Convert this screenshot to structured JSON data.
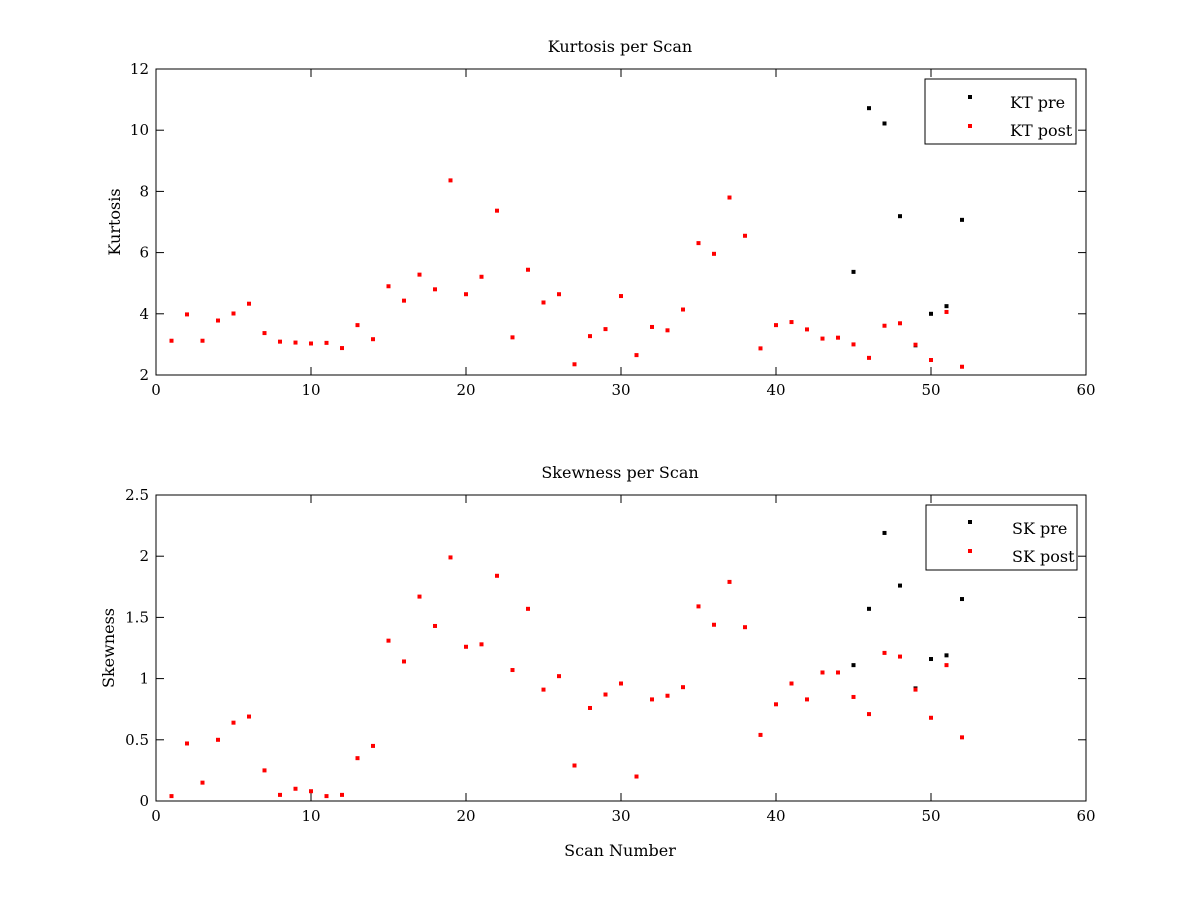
{
  "colors": {
    "pre": "#000000",
    "post": "#ff0000",
    "axes": "#000000",
    "background": "#ffffff"
  },
  "chart_data": [
    {
      "type": "scatter",
      "title": "Kurtosis per Scan",
      "xlabel": "",
      "ylabel": "Kurtosis",
      "xlim": [
        0,
        60
      ],
      "ylim": [
        2,
        12
      ],
      "xticks": [
        0,
        10,
        20,
        30,
        40,
        50,
        60
      ],
      "yticks": [
        2,
        4,
        6,
        8,
        10,
        12
      ],
      "grid": false,
      "legend_position": "top-right",
      "series": [
        {
          "name": "KT pre",
          "color": "#000000",
          "points": [
            [
              45,
              5.37
            ],
            [
              46,
              10.72
            ],
            [
              47,
              10.22
            ],
            [
              48,
              7.19
            ],
            [
              49,
              2.97
            ],
            [
              50,
              4.0
            ],
            [
              51,
              4.25
            ],
            [
              52,
              7.07
            ]
          ]
        },
        {
          "name": "KT post",
          "color": "#ff0000",
          "points": [
            [
              1,
              3.12
            ],
            [
              2,
              3.98
            ],
            [
              3,
              3.12
            ],
            [
              4,
              3.78
            ],
            [
              5,
              4.01
            ],
            [
              6,
              4.33
            ],
            [
              7,
              3.37
            ],
            [
              8,
              3.09
            ],
            [
              9,
              3.06
            ],
            [
              10,
              3.03
            ],
            [
              11,
              3.05
            ],
            [
              12,
              2.88
            ],
            [
              13,
              3.63
            ],
            [
              14,
              3.17
            ],
            [
              15,
              4.9
            ],
            [
              16,
              4.43
            ],
            [
              17,
              5.28
            ],
            [
              18,
              4.8
            ],
            [
              19,
              8.36
            ],
            [
              20,
              4.64
            ],
            [
              21,
              5.21
            ],
            [
              22,
              7.37
            ],
            [
              23,
              3.23
            ],
            [
              24,
              5.44
            ],
            [
              25,
              4.37
            ],
            [
              26,
              4.64
            ],
            [
              27,
              2.35
            ],
            [
              28,
              3.27
            ],
            [
              29,
              3.5
            ],
            [
              30,
              4.58
            ],
            [
              31,
              2.65
            ],
            [
              32,
              3.57
            ],
            [
              33,
              3.46
            ],
            [
              34,
              4.14
            ],
            [
              35,
              6.31
            ],
            [
              36,
              5.96
            ],
            [
              37,
              7.8
            ],
            [
              38,
              6.55
            ],
            [
              39,
              2.87
            ],
            [
              40,
              3.63
            ],
            [
              41,
              3.73
            ],
            [
              42,
              3.49
            ],
            [
              43,
              3.19
            ],
            [
              44,
              3.22
            ],
            [
              45,
              3.0
            ],
            [
              46,
              2.56
            ],
            [
              47,
              3.61
            ],
            [
              48,
              3.69
            ],
            [
              49,
              2.99
            ],
            [
              50,
              2.49
            ],
            [
              51,
              4.06
            ],
            [
              52,
              2.27
            ]
          ]
        }
      ]
    },
    {
      "type": "scatter",
      "title": "Skewness per Scan",
      "xlabel": "Scan Number",
      "ylabel": "Skewness",
      "xlim": [
        0,
        60
      ],
      "ylim": [
        0,
        2.5
      ],
      "xticks": [
        0,
        10,
        20,
        30,
        40,
        50,
        60
      ],
      "yticks": [
        0,
        0.5,
        1,
        1.5,
        2,
        2.5
      ],
      "grid": false,
      "legend_position": "top-right",
      "series": [
        {
          "name": "SK pre",
          "color": "#000000",
          "points": [
            [
              45,
              1.11
            ],
            [
              46,
              1.57
            ],
            [
              47,
              2.19
            ],
            [
              48,
              1.76
            ],
            [
              49,
              0.92
            ],
            [
              50,
              1.16
            ],
            [
              51,
              1.19
            ],
            [
              52,
              1.65
            ]
          ]
        },
        {
          "name": "SK post",
          "color": "#ff0000",
          "points": [
            [
              1,
              0.04
            ],
            [
              2,
              0.47
            ],
            [
              3,
              0.15
            ],
            [
              4,
              0.5
            ],
            [
              5,
              0.64
            ],
            [
              6,
              0.69
            ],
            [
              7,
              0.25
            ],
            [
              8,
              0.05
            ],
            [
              9,
              0.1
            ],
            [
              10,
              0.08
            ],
            [
              11,
              0.04
            ],
            [
              12,
              0.05
            ],
            [
              13,
              0.35
            ],
            [
              14,
              0.45
            ],
            [
              15,
              1.31
            ],
            [
              16,
              1.14
            ],
            [
              17,
              1.67
            ],
            [
              18,
              1.43
            ],
            [
              19,
              1.99
            ],
            [
              20,
              1.26
            ],
            [
              21,
              1.28
            ],
            [
              22,
              1.84
            ],
            [
              23,
              1.07
            ],
            [
              24,
              1.57
            ],
            [
              25,
              0.91
            ],
            [
              26,
              1.02
            ],
            [
              27,
              0.29
            ],
            [
              28,
              0.76
            ],
            [
              29,
              0.87
            ],
            [
              30,
              0.96
            ],
            [
              31,
              0.2
            ],
            [
              32,
              0.83
            ],
            [
              33,
              0.86
            ],
            [
              34,
              0.93
            ],
            [
              35,
              1.59
            ],
            [
              36,
              1.44
            ],
            [
              37,
              1.79
            ],
            [
              38,
              1.42
            ],
            [
              39,
              0.54
            ],
            [
              40,
              0.79
            ],
            [
              41,
              0.96
            ],
            [
              42,
              0.83
            ],
            [
              43,
              1.05
            ],
            [
              44,
              1.05
            ],
            [
              45,
              0.85
            ],
            [
              46,
              0.71
            ],
            [
              47,
              1.21
            ],
            [
              48,
              1.18
            ],
            [
              49,
              0.91
            ],
            [
              50,
              0.68
            ],
            [
              51,
              1.11
            ],
            [
              52,
              0.52
            ]
          ]
        }
      ]
    }
  ]
}
